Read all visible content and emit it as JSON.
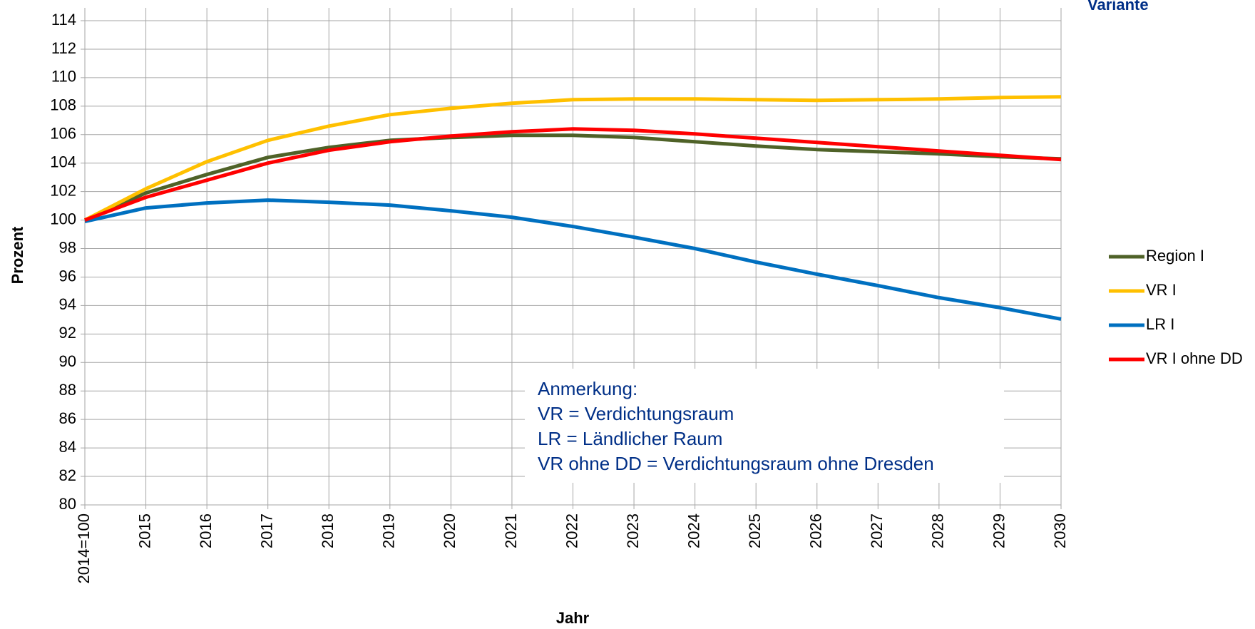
{
  "chart_data": {
    "type": "line",
    "title": "Variante",
    "xlabel": "Jahr",
    "ylabel": "Prozent",
    "categories": [
      "2014=100",
      "2015",
      "2016",
      "2017",
      "2018",
      "2019",
      "2020",
      "2021",
      "2022",
      "2023",
      "2024",
      "2025",
      "2026",
      "2027",
      "2028",
      "2029",
      "2030"
    ],
    "series": [
      {
        "name": "Region I",
        "color": "#4f6228",
        "values": [
          100,
          101.9,
          103.2,
          104.4,
          105.1,
          105.6,
          105.8,
          105.95,
          105.95,
          105.8,
          105.5,
          105.2,
          104.95,
          104.8,
          104.65,
          104.45,
          104.3
        ]
      },
      {
        "name": "VR I",
        "color": "#ffc000",
        "values": [
          100,
          102.2,
          104.1,
          105.6,
          106.6,
          107.4,
          107.85,
          108.2,
          108.45,
          108.5,
          108.5,
          108.45,
          108.4,
          108.45,
          108.5,
          108.6,
          108.65
        ]
      },
      {
        "name": "LR I",
        "color": "#0070c0",
        "values": [
          99.9,
          100.85,
          101.2,
          101.4,
          101.25,
          101.05,
          100.65,
          100.2,
          99.55,
          98.8,
          98.0,
          97.05,
          96.2,
          95.4,
          94.55,
          93.85,
          93.05
        ]
      },
      {
        "name": "VR I ohne DD",
        "color": "#ff0000",
        "values": [
          100,
          101.6,
          102.8,
          104.0,
          104.9,
          105.5,
          105.9,
          106.2,
          106.4,
          106.3,
          106.05,
          105.75,
          105.45,
          105.15,
          104.85,
          104.55,
          104.25
        ]
      }
    ],
    "ylim": [
      80,
      114
    ],
    "yticks": [
      80,
      82,
      84,
      86,
      88,
      90,
      92,
      94,
      96,
      98,
      100,
      102,
      104,
      106,
      108,
      110,
      112,
      114
    ],
    "grid": true,
    "legend": "right",
    "annotation": [
      "Anmerkung:",
      "VR = Verdichtungsraum",
      "LR = Ländlicher Raum",
      "VR ohne DD = Verdichtungsraum ohne Dresden"
    ]
  }
}
